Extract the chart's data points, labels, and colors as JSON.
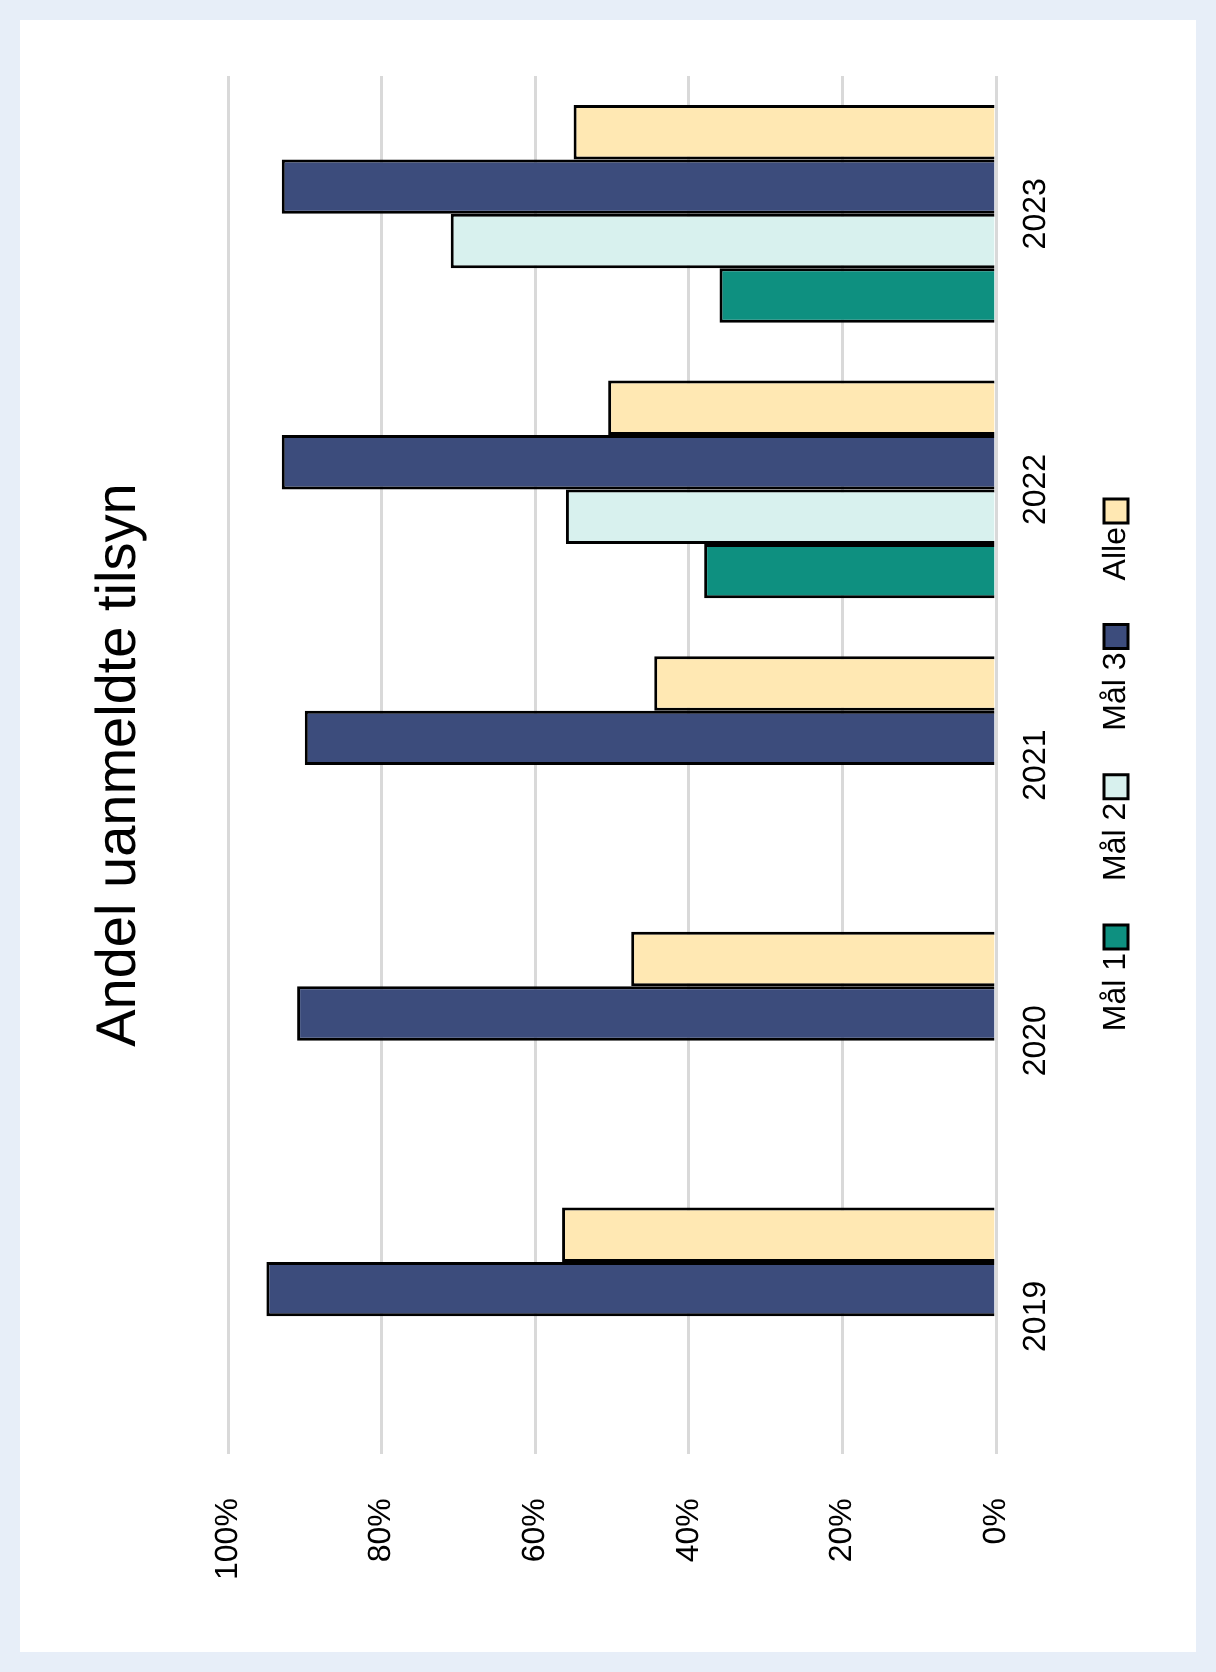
{
  "chart_data": {
    "type": "bar",
    "orientation": "horizontal",
    "title": "Andel uanmeldte tilsyn",
    "categories": [
      "2023",
      "2022",
      "2021",
      "2020",
      "2019"
    ],
    "series": [
      {
        "name": "Mål 1",
        "color": "#0e9080",
        "values": [
          36,
          38,
          null,
          null,
          null
        ]
      },
      {
        "name": "Mål 2",
        "color": "#d8f1ee",
        "values": [
          71,
          56,
          null,
          null,
          null
        ]
      },
      {
        "name": "Mål 3",
        "color": "#3c4c7c",
        "values": [
          93,
          93,
          90,
          91,
          95
        ]
      },
      {
        "name": "Alle",
        "color": "#ffe8b3",
        "values": [
          55,
          50.5,
          44.5,
          47.5,
          56.5
        ]
      }
    ],
    "xlim": [
      100,
      0
    ],
    "xticks": [
      {
        "value": 100,
        "label": "100%"
      },
      {
        "value": 80,
        "label": "80%"
      },
      {
        "value": 60,
        "label": "60%"
      },
      {
        "value": 40,
        "label": "40%"
      },
      {
        "value": 20,
        "label": "20%"
      },
      {
        "value": 0,
        "label": "0%"
      }
    ],
    "grid": "x",
    "legend": "right"
  }
}
